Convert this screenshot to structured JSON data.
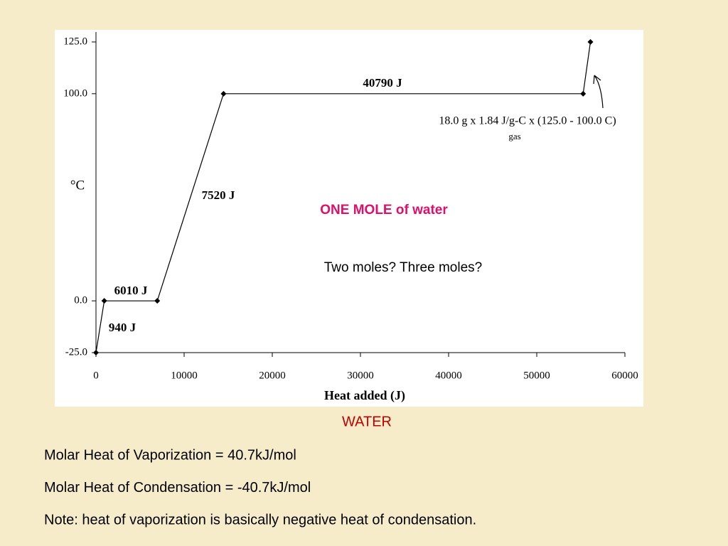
{
  "chart_data": {
    "type": "line",
    "x_label": "Heat added (J)",
    "y_label": "°C",
    "x": [
      0,
      940,
      6950,
      14470,
      55260,
      56088
    ],
    "values": [
      -25,
      0,
      0,
      100,
      100,
      125
    ],
    "color": "#000000",
    "xlim": [
      0,
      60000
    ],
    "ylim": [
      -25,
      125
    ],
    "xticks": [
      0,
      10000,
      20000,
      30000,
      40000,
      50000,
      60000
    ],
    "yticks": [
      {
        "value": -25,
        "label": "-25.0"
      },
      {
        "value": 0,
        "label": "0.0"
      },
      {
        "value": 100,
        "label": "100.0"
      },
      {
        "value": 125,
        "label": "125.0"
      }
    ],
    "annotations": [
      "940 J",
      "6010 J",
      "7520 J",
      "40790 J",
      "18.0 g x 1.84 J/g-C x (125.0 - 100.0 C)",
      "gas",
      "ONE MOLE of water",
      "Two moles? Three moles?"
    ]
  },
  "slide": {
    "caption": "WATER",
    "lines": [
      "Molar Heat of Vaporization = 40.7kJ/mol",
      "Molar Heat of Condensation = -40.7kJ/mol",
      "Note: heat of vaporization is basically negative heat of condensation."
    ]
  }
}
